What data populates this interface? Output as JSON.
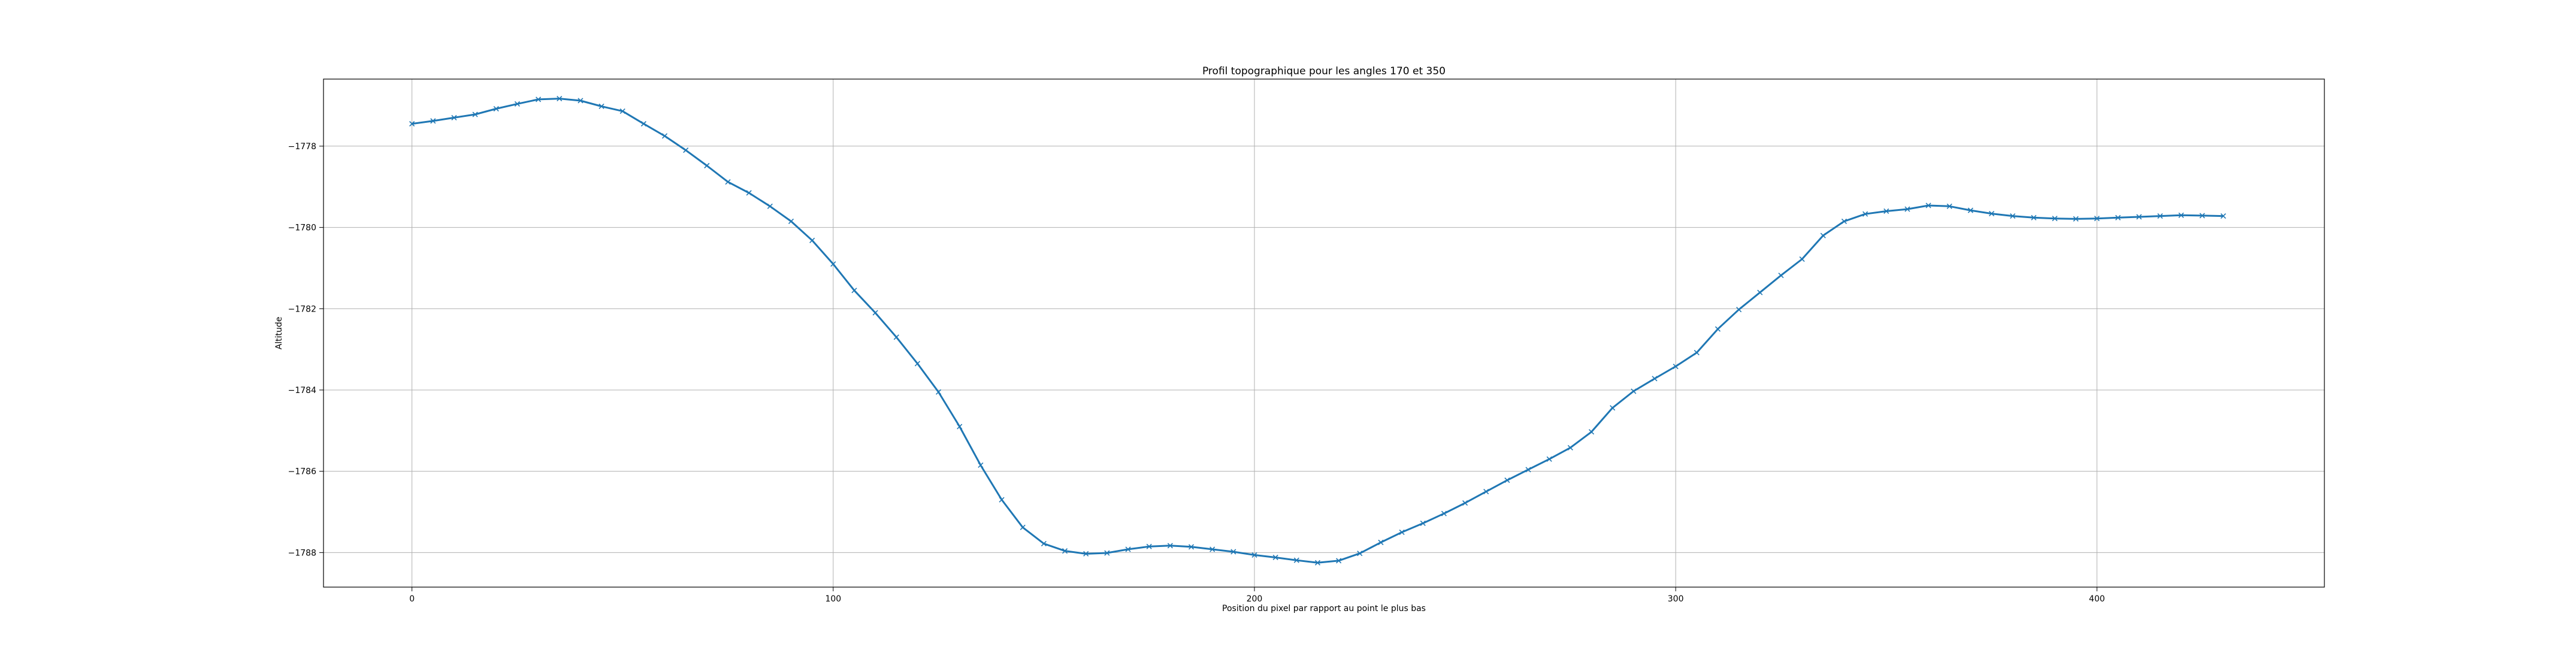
{
  "chart_data": {
    "type": "line",
    "title": "Profil topographique pour les angles 170 et 350",
    "xlabel": "Position du pixel par rapport au point le plus bas",
    "ylabel": "Altitude",
    "xlim": [
      -21,
      454
    ],
    "ylim": [
      -1788.85,
      -1776.35
    ],
    "xticks": [
      0,
      100,
      200,
      300,
      400
    ],
    "yticks": [
      -1778,
      -1780,
      -1782,
      -1784,
      -1786,
      -1788
    ],
    "grid": true,
    "marker": "x",
    "color": "#1f77b4",
    "series": [
      {
        "x": [
          0,
          5,
          10,
          15,
          20,
          25,
          30,
          35,
          40,
          45,
          50,
          55,
          60,
          65,
          70,
          75,
          80,
          85,
          90,
          95,
          100,
          105,
          110,
          115,
          120,
          125,
          130,
          135,
          140,
          145,
          150,
          155,
          160,
          165,
          170,
          175,
          180,
          185,
          190,
          195,
          200,
          205,
          210,
          215,
          220,
          225,
          230,
          235,
          240,
          245,
          250,
          255,
          260,
          265,
          270,
          275,
          280,
          285,
          290,
          295,
          300,
          305,
          310,
          315,
          320,
          325,
          330,
          335,
          340,
          345,
          350,
          355,
          360,
          365,
          370,
          375,
          380,
          385,
          390,
          395,
          400,
          405,
          410,
          415,
          420,
          425,
          430
        ],
        "y": [
          -1777.45,
          -1777.38,
          -1777.3,
          -1777.22,
          -1777.08,
          -1776.96,
          -1776.85,
          -1776.83,
          -1776.88,
          -1777.02,
          -1777.14,
          -1777.45,
          -1777.75,
          -1778.1,
          -1778.48,
          -1778.88,
          -1779.15,
          -1779.48,
          -1779.85,
          -1780.32,
          -1780.9,
          -1781.55,
          -1782.1,
          -1782.7,
          -1783.35,
          -1784.05,
          -1784.9,
          -1785.85,
          -1786.7,
          -1787.38,
          -1787.78,
          -1787.96,
          -1788.03,
          -1788.01,
          -1787.92,
          -1787.85,
          -1787.83,
          -1787.86,
          -1787.92,
          -1787.98,
          -1788.06,
          -1788.12,
          -1788.19,
          -1788.25,
          -1788.2,
          -1788.02,
          -1787.75,
          -1787.5,
          -1787.28,
          -1787.04,
          -1786.78,
          -1786.5,
          -1786.22,
          -1785.96,
          -1785.7,
          -1785.42,
          -1785.03,
          -1784.44,
          -1784.03,
          -1783.72,
          -1783.42,
          -1783.08,
          -1782.5,
          -1782.02,
          -1781.6,
          -1781.18,
          -1780.78,
          -1780.2,
          -1779.85,
          -1779.67,
          -1779.6,
          -1779.55,
          -1779.46,
          -1779.48,
          -1779.58,
          -1779.66,
          -1779.72,
          -1779.76,
          -1779.78,
          -1779.79,
          -1779.78,
          -1779.76,
          -1779.74,
          -1779.72,
          -1779.7,
          -1779.71,
          -1779.72
        ]
      }
    ]
  }
}
